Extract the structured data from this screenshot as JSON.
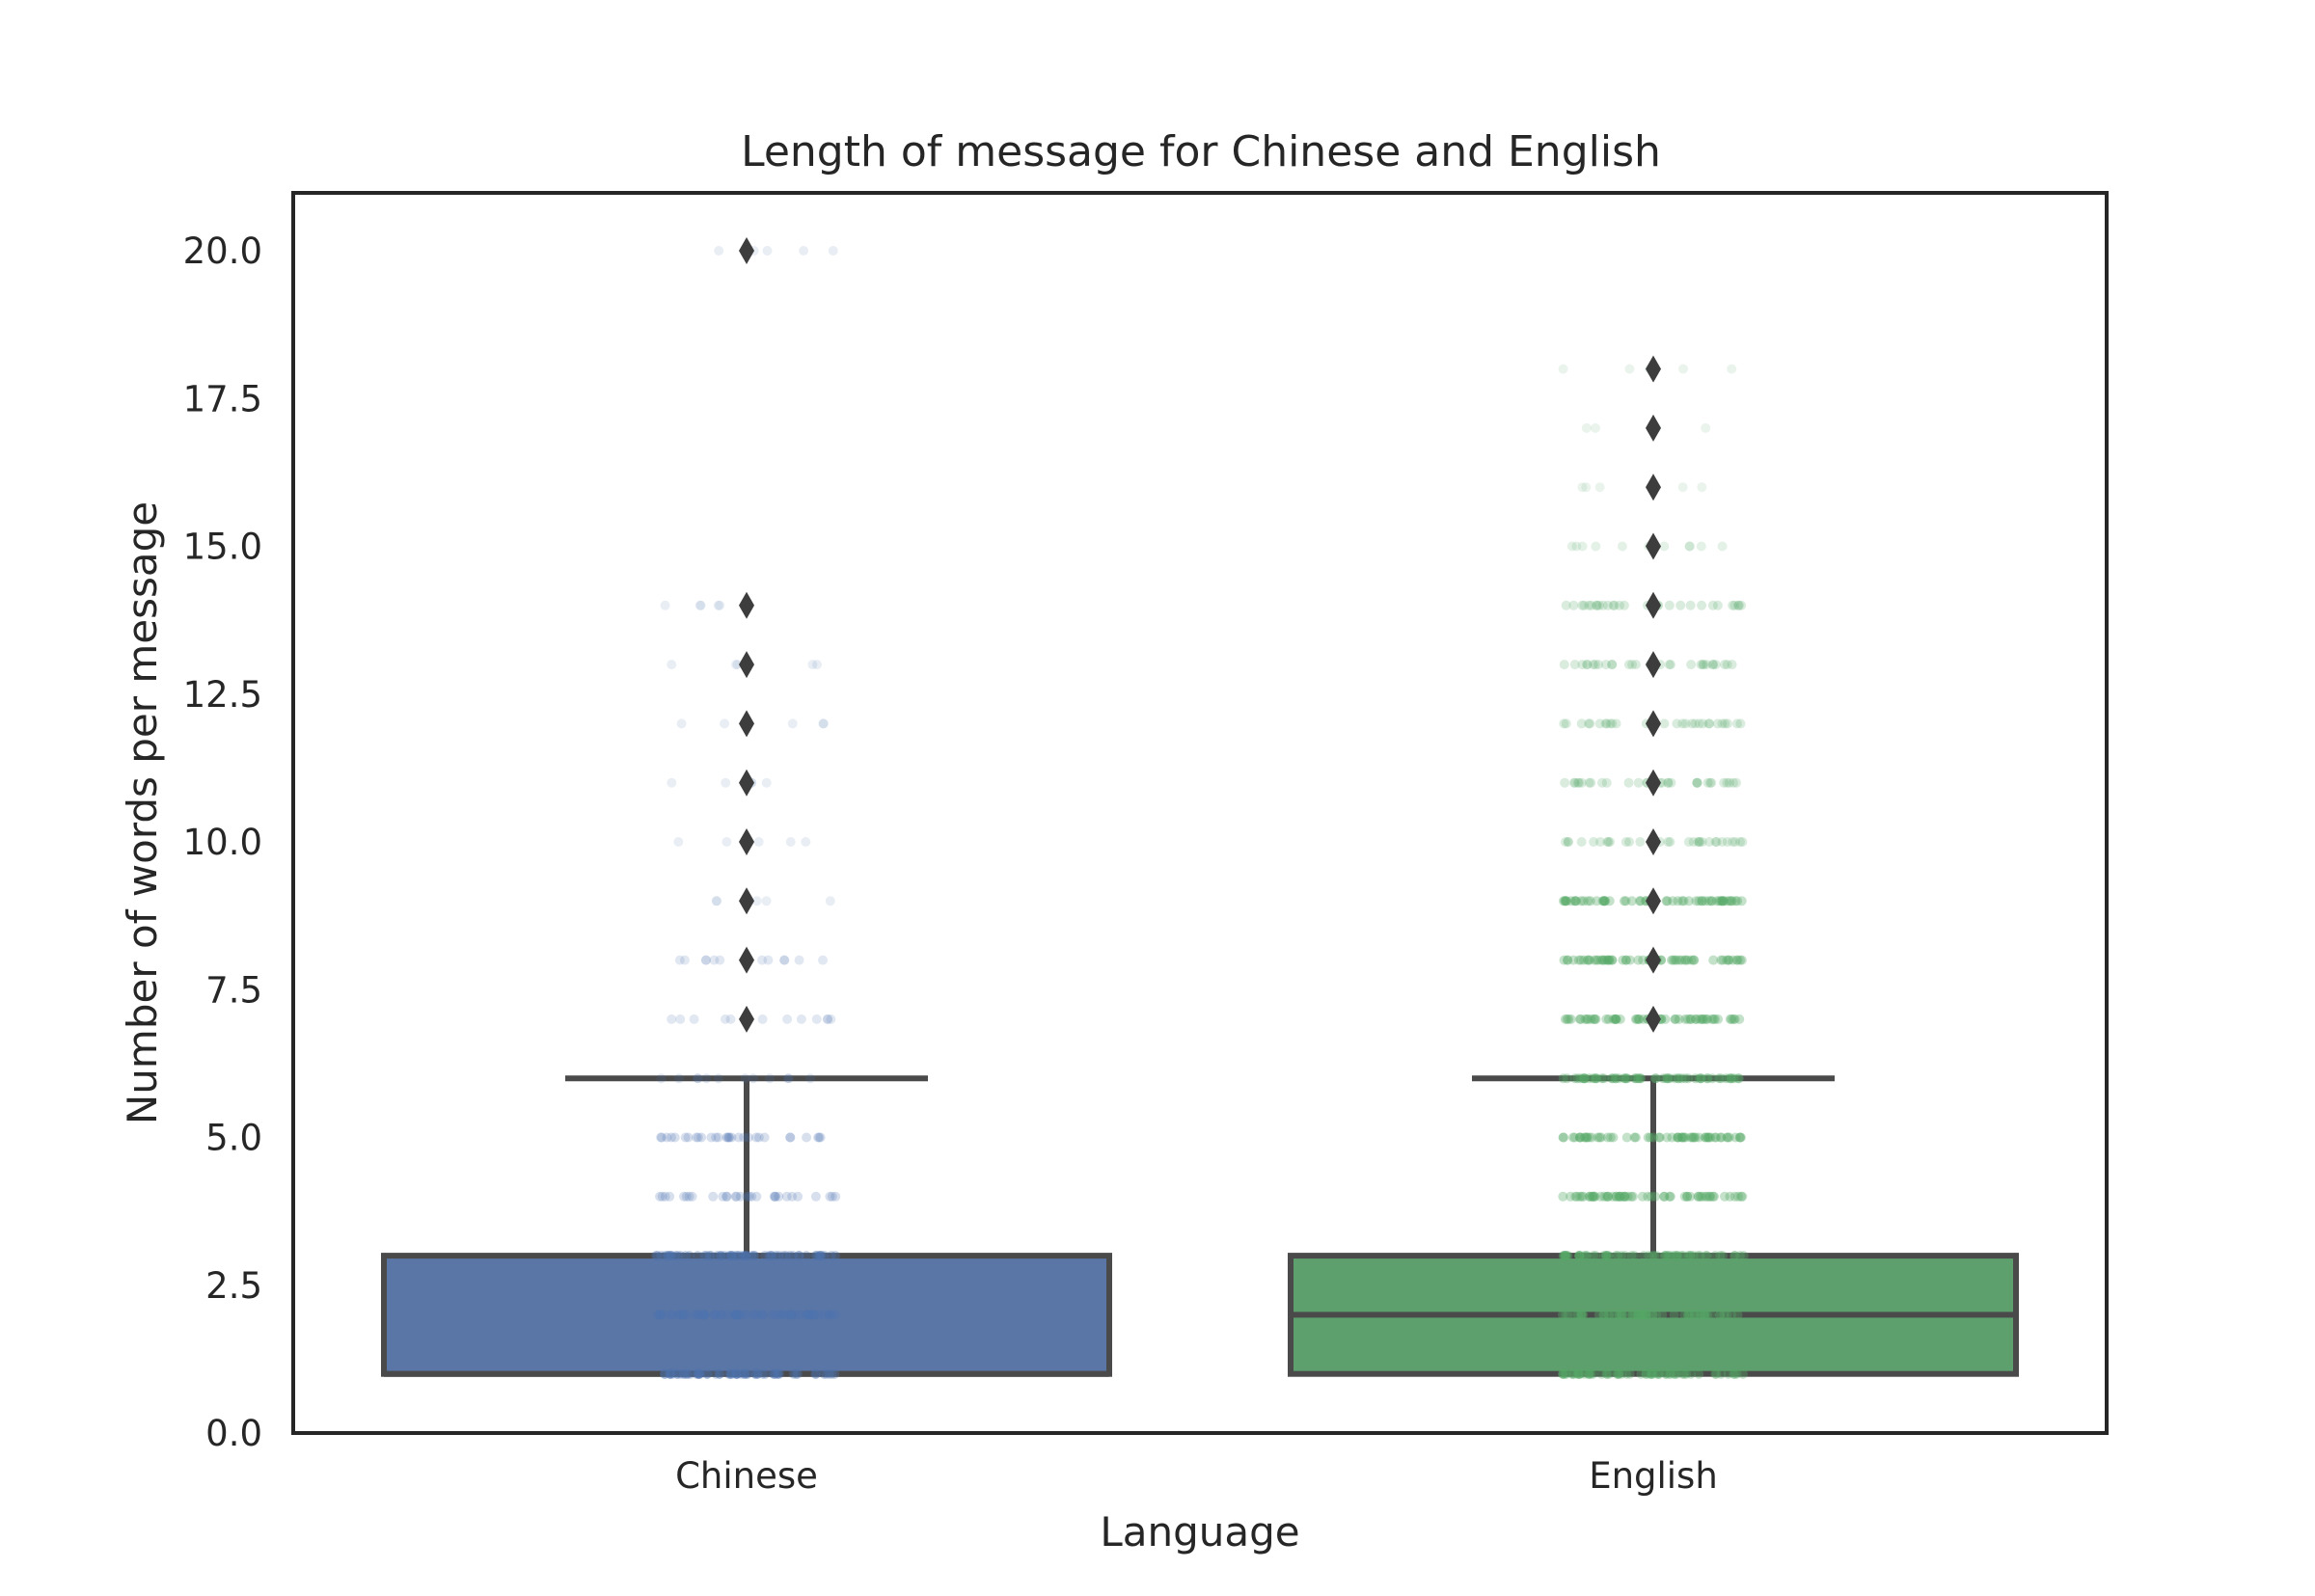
{
  "chart_data": {
    "type": "box",
    "title": "Length of message for Chinese and English",
    "xlabel": "Language",
    "ylabel": "Number of words per message",
    "ylim": [
      0,
      21
    ],
    "yticks": [
      "0.0",
      "2.5",
      "5.0",
      "7.5",
      "10.0",
      "12.5",
      "15.0",
      "17.5",
      "20.0"
    ],
    "grid": false,
    "categories": [
      "Chinese",
      "English"
    ],
    "series": [
      {
        "color": "#5a76a6",
        "whisker_low": 1,
        "q1": 1,
        "median": 1,
        "q3": 3,
        "whisker_high": 6,
        "outliers": [
          7,
          8,
          9,
          10,
          11,
          12,
          13,
          14,
          20
        ],
        "strip_color": "#4c72b0",
        "strip_points": [
          {
            "y": 1,
            "density": "high"
          },
          {
            "y": 2,
            "density": "high"
          },
          {
            "y": 3,
            "density": "high"
          },
          {
            "y": 4,
            "density": "medium"
          },
          {
            "y": 5,
            "density": "medium"
          },
          {
            "y": 6,
            "density": "low"
          },
          {
            "y": 7,
            "density": "low"
          },
          {
            "y": 8,
            "density": "low"
          },
          {
            "y": 9,
            "density": "sparse"
          },
          {
            "y": 10,
            "density": "sparse"
          },
          {
            "y": 11,
            "density": "sparse"
          },
          {
            "y": 12,
            "density": "sparse"
          },
          {
            "y": 13,
            "density": "sparse"
          },
          {
            "y": 14,
            "density": "sparse"
          },
          {
            "y": 20,
            "density": "sparse"
          }
        ]
      },
      {
        "color": "#5e9f6e",
        "whisker_low": 1,
        "q1": 1,
        "median": 2,
        "q3": 3,
        "whisker_high": 6,
        "outliers": [
          7,
          8,
          9,
          10,
          11,
          12,
          13,
          14,
          15,
          16,
          17,
          18
        ],
        "strip_color": "#55a868",
        "strip_points": [
          {
            "y": 1,
            "density": "high"
          },
          {
            "y": 2,
            "density": "high"
          },
          {
            "y": 3,
            "density": "high"
          },
          {
            "y": 4,
            "density": "high"
          },
          {
            "y": 5,
            "density": "high"
          },
          {
            "y": 6,
            "density": "high"
          },
          {
            "y": 7,
            "density": "high"
          },
          {
            "y": 8,
            "density": "high"
          },
          {
            "y": 9,
            "density": "high"
          },
          {
            "y": 10,
            "density": "medium"
          },
          {
            "y": 11,
            "density": "medium"
          },
          {
            "y": 12,
            "density": "medium"
          },
          {
            "y": 13,
            "density": "medium"
          },
          {
            "y": 14,
            "density": "medium"
          },
          {
            "y": 15,
            "density": "low"
          },
          {
            "y": 16,
            "density": "sparse"
          },
          {
            "y": 17,
            "density": "sparse"
          },
          {
            "y": 18,
            "density": "sparse"
          }
        ]
      }
    ]
  }
}
